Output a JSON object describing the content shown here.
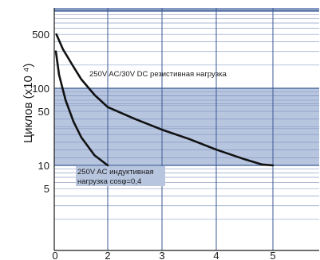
{
  "chart_data": {
    "type": "line",
    "ylabel": "Циклов (х10 ⁴)",
    "xlabel": "",
    "y_scale": "log",
    "xlim": [
      0,
      5.8
    ],
    "ylim": [
      1,
      1000
    ],
    "x_ticks": [
      "0",
      "2",
      "3",
      "4",
      "5"
    ],
    "y_ticks": [
      "500",
      "100",
      "50",
      "10",
      "5"
    ],
    "grid": true,
    "band_color": "#b7c5df",
    "band_line_color": "#7f95bf",
    "series": [
      {
        "name": "250V AC/30V DC резистивная нагрузка",
        "points": [
          [
            0.05,
            500
          ],
          [
            0.3,
            320
          ],
          [
            0.7,
            190
          ],
          [
            1.0,
            130
          ],
          [
            1.5,
            82
          ],
          [
            2.0,
            57
          ],
          [
            2.5,
            40
          ],
          [
            3.0,
            29
          ],
          [
            3.5,
            22
          ],
          [
            4.0,
            16
          ],
          [
            4.5,
            12
          ],
          [
            4.8,
            10.3
          ],
          [
            5.0,
            10
          ]
        ]
      },
      {
        "name": "250V AC индуктивная\nнагрузка cosφ=0,4",
        "points": [
          [
            0.03,
            300
          ],
          [
            0.15,
            150
          ],
          [
            0.4,
            70
          ],
          [
            0.7,
            37
          ],
          [
            1.0,
            23
          ],
          [
            1.5,
            13.5
          ],
          [
            2.0,
            10
          ]
        ]
      }
    ],
    "annotations": [
      "250V AC/30V DC резистивная нагрузка",
      "250V AC индуктивная",
      "нагрузка cosφ=0,4"
    ]
  }
}
